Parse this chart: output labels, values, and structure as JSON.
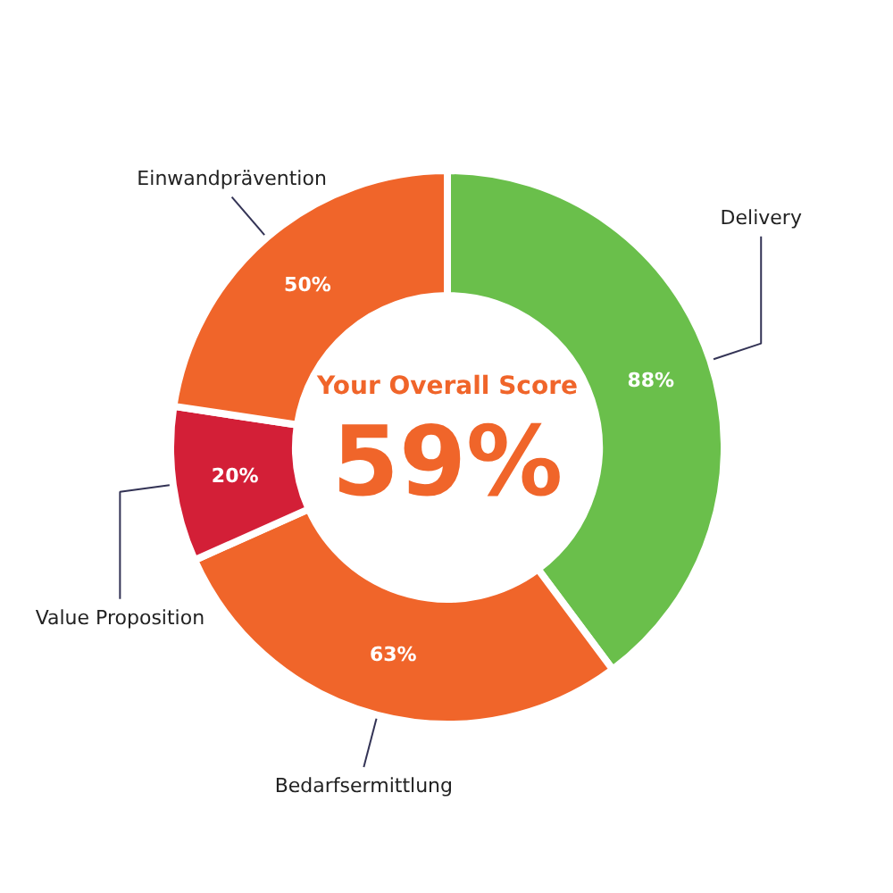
{
  "chart_data": {
    "type": "donut",
    "categories": [
      "Delivery",
      "Bedarfsermittlung",
      "Value Proposition",
      "Einwandprävention"
    ],
    "values": [
      88,
      63,
      20,
      50
    ],
    "colors": [
      "#6abf4b",
      "#f0652a",
      "#d31f37",
      "#f0652a"
    ],
    "value_labels": [
      "88%",
      "63%",
      "20%",
      "50%"
    ],
    "annotations": [
      "Your Overall Score",
      "59%"
    ]
  }
}
